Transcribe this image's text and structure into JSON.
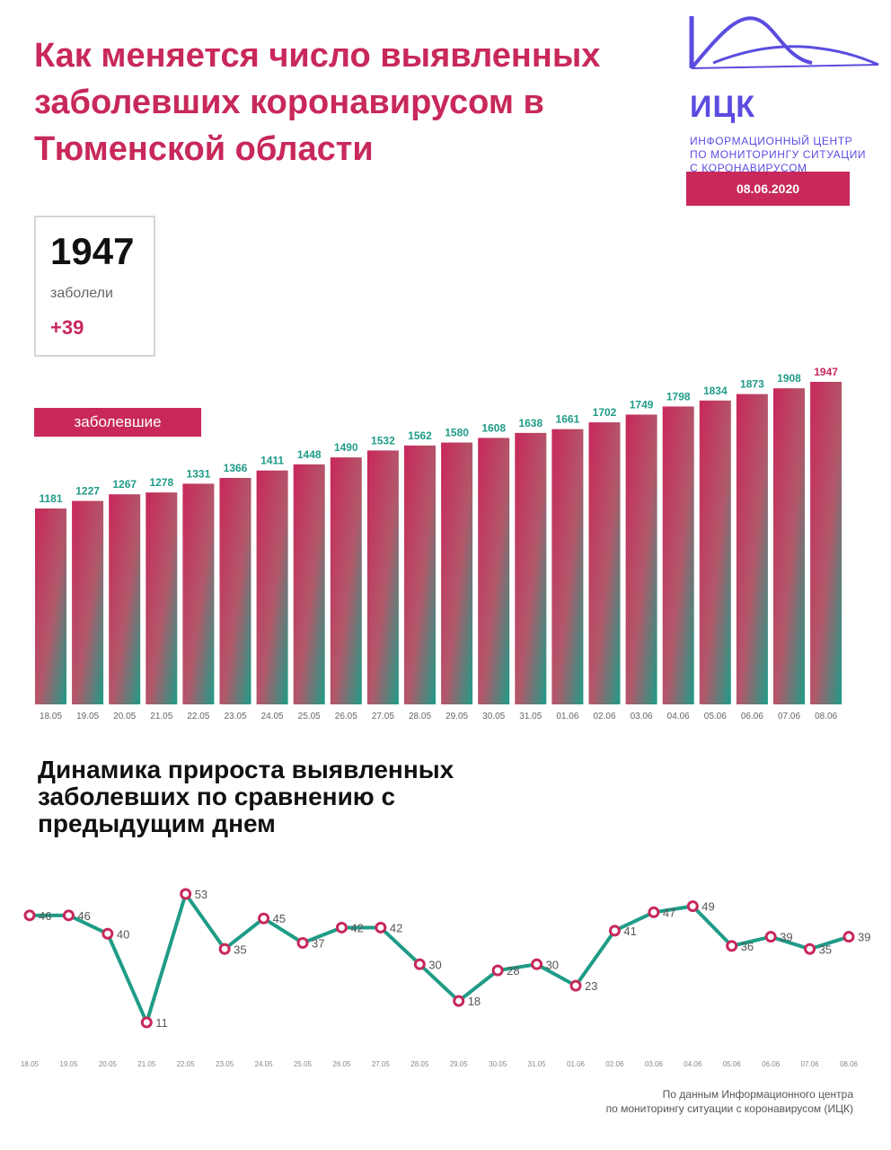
{
  "title": "Как меняется число выявленных заболевших коронавирусом в Тюменской области",
  "logo": {
    "abbr": "ИЦК",
    "subtitle_lines": [
      "ИНФОРМАЦИОННЫЙ ЦЕНТР",
      "ПО МОНИТОРИНГУ СИТУАЦИИ",
      "С КОРОНАВИРУСОМ"
    ]
  },
  "date": "08.06.2020",
  "kpi": {
    "value": "1947",
    "label": "заболели",
    "delta": "+39"
  },
  "subtitle": "Динамика прироста выявленных заболевших по сравнению с предыдущим днем",
  "source_lines": [
    "По данным Информационного центра",
    "по мониторингу ситуации с коронавирусом (ИЦК)"
  ],
  "colors": {
    "accent": "#c8285a",
    "teal": "#1f9c87",
    "brand": "#5b4ce0"
  },
  "chart_data": [
    {
      "type": "bar",
      "series_label": "заболевшие",
      "categories": [
        "18.05",
        "19.05",
        "20.05",
        "21.05",
        "22.05",
        "23.05",
        "24.05",
        "25.05",
        "26.05",
        "27.05",
        "28.05",
        "29.05",
        "30.05",
        "31.05",
        "01.06",
        "02.06",
        "03.06",
        "04.06",
        "05.06",
        "06.06",
        "07.06",
        "08.06"
      ],
      "values": [
        1181,
        1227,
        1267,
        1278,
        1331,
        1366,
        1411,
        1448,
        1490,
        1532,
        1562,
        1580,
        1608,
        1638,
        1661,
        1702,
        1749,
        1798,
        1834,
        1873,
        1908,
        1947
      ],
      "ylim": [
        0,
        1947
      ]
    },
    {
      "type": "line",
      "categories": [
        "18.05",
        "19.05",
        "20.05",
        "21.05",
        "22.05",
        "23.05",
        "24.05",
        "25.05",
        "26.05",
        "27.05",
        "28.05",
        "29.05",
        "30.05",
        "31.05",
        "01.06",
        "02.06",
        "03.06",
        "04.06",
        "05.06",
        "06.06",
        "07.06",
        "08.06"
      ],
      "values": [
        46,
        46,
        40,
        11,
        53,
        35,
        45,
        37,
        42,
        42,
        30,
        18,
        28,
        30,
        23,
        41,
        47,
        49,
        36,
        39,
        35,
        39
      ],
      "ylim": [
        11,
        53
      ]
    }
  ]
}
